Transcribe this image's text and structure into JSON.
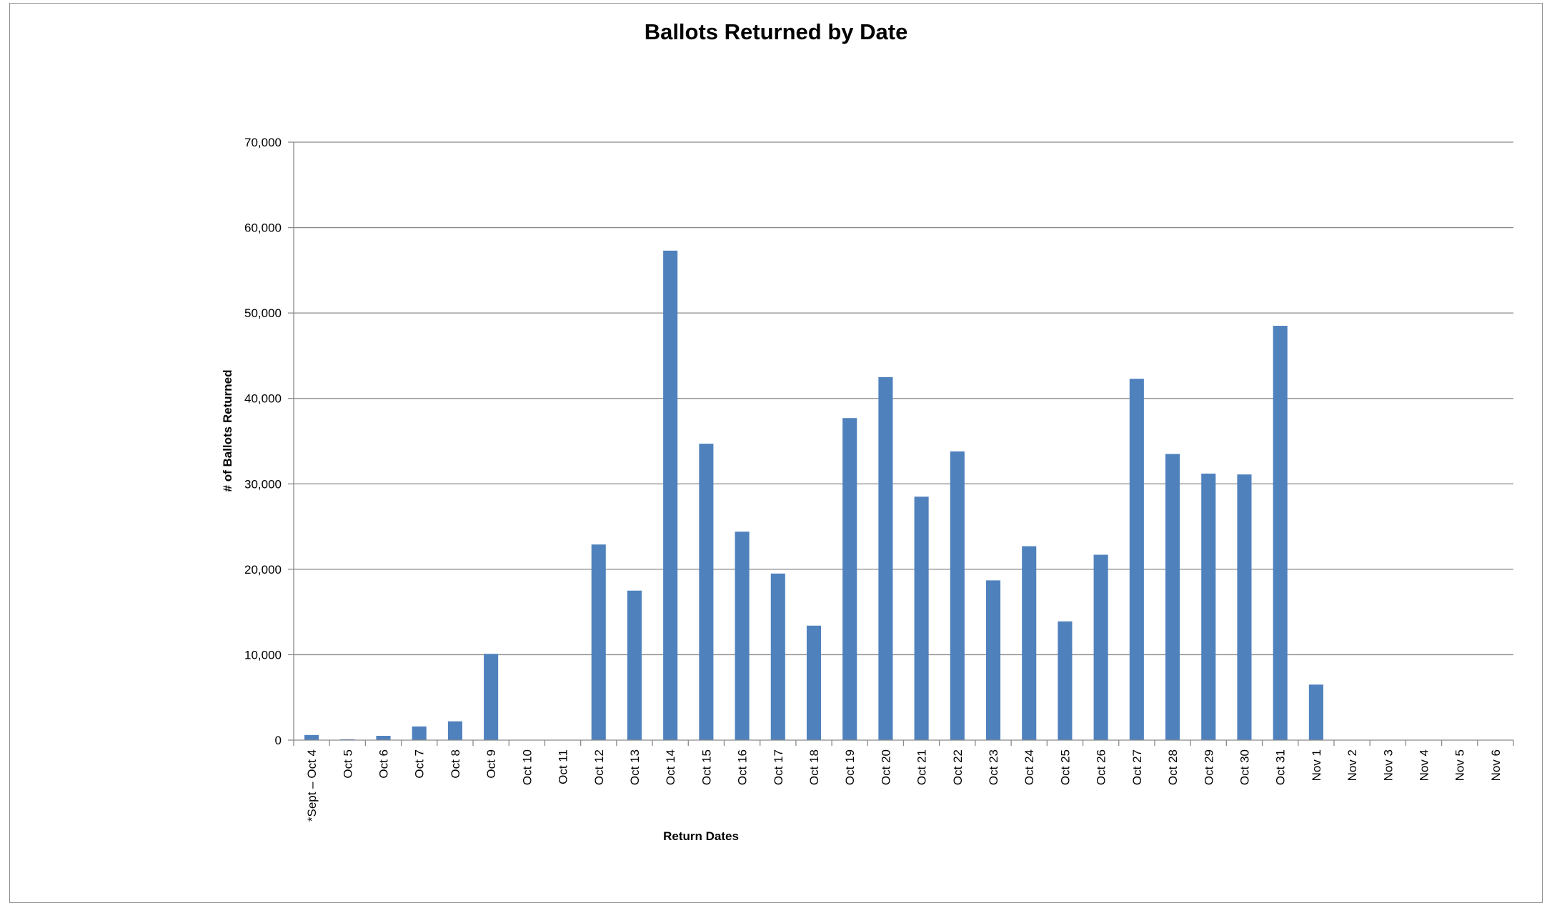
{
  "chart_data": {
    "type": "bar",
    "title": "Ballots Returned by Date",
    "xlabel": "Return Dates",
    "ylabel": "# of Ballots Returned",
    "ylim": [
      0,
      70000
    ],
    "yticks": [
      0,
      10000,
      20000,
      30000,
      40000,
      50000,
      60000,
      70000
    ],
    "ytick_labels": [
      "0",
      "10,000",
      "20,000",
      "30,000",
      "40,000",
      "50,000",
      "60,000",
      "70,000"
    ],
    "grid": true,
    "legend": "none",
    "bar_color": "#4f81bd",
    "categories": [
      "*Sept – Oct 4",
      "Oct 5",
      "Oct 6",
      "Oct 7",
      "Oct 8",
      "Oct 9",
      "Oct 10",
      "Oct 11",
      "Oct 12",
      "Oct 13",
      "Oct 14",
      "Oct 15",
      "Oct 16",
      "Oct 17",
      "Oct 18",
      "Oct 19",
      "Oct 20",
      "Oct 21",
      "Oct 22",
      "Oct 23",
      "Oct 24",
      "Oct 25",
      "Oct 26",
      "Oct 27",
      "Oct 28",
      "Oct 29",
      "Oct 30",
      "Oct 31",
      "Nov 1",
      "Nov 2",
      "Nov 3",
      "Nov 4",
      "Nov 5",
      "Nov 6"
    ],
    "values": [
      600,
      100,
      500,
      1600,
      2200,
      10100,
      0,
      0,
      22900,
      17500,
      57300,
      34700,
      24400,
      19500,
      13400,
      37700,
      42500,
      28500,
      33800,
      18700,
      22700,
      13900,
      21700,
      42300,
      33500,
      31200,
      31100,
      48500,
      6500,
      0,
      0,
      0,
      0,
      0
    ]
  }
}
